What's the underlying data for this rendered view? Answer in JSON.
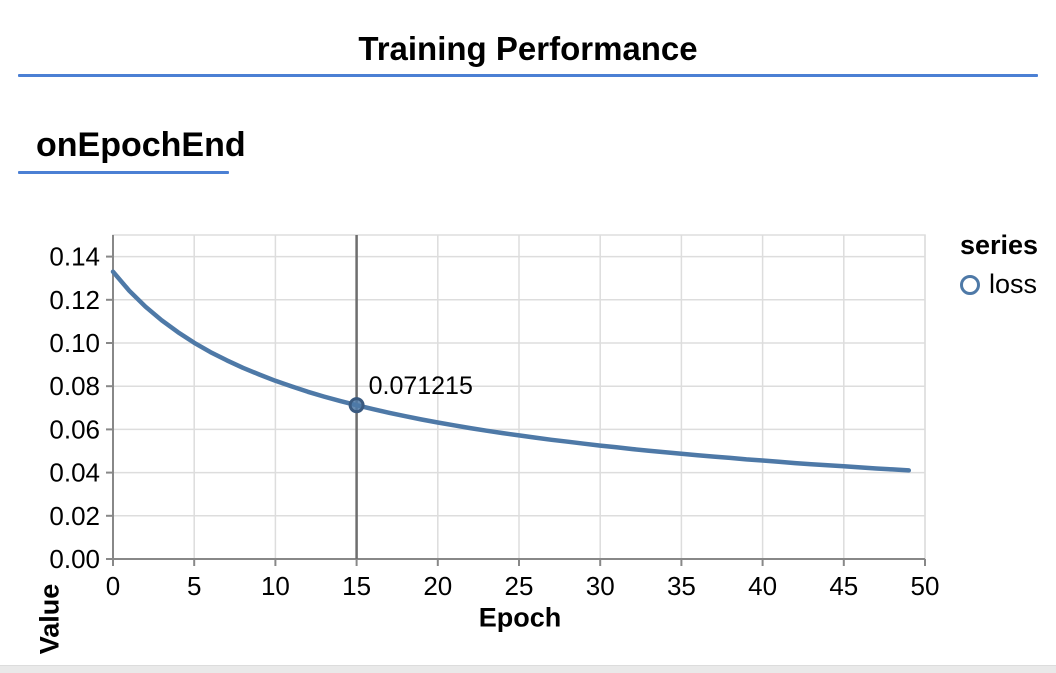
{
  "page": {
    "title": "Training Performance",
    "section_heading": "onEpochEnd"
  },
  "colors": {
    "accent_rule": "#4b80d4",
    "series_stroke": "#4e79a7",
    "marker_stroke": "#3a5a80",
    "grid": "#dddddd",
    "axis": "#888888",
    "crosshair": "#6e6e6e",
    "text": "#000000",
    "footer_strip": "#e9e9e9"
  },
  "legend": {
    "title": "series",
    "items": [
      {
        "label": "loss",
        "symbol": "open-circle-icon",
        "color": "#4e79a7"
      }
    ]
  },
  "chart_data": {
    "type": "line",
    "title": "Training Performance",
    "xlabel": "Epoch",
    "ylabel": "Value",
    "xlim": [
      0,
      50
    ],
    "ylim": [
      0,
      0.15
    ],
    "grid": true,
    "legend_position": "right",
    "x_ticks": [
      0,
      5,
      10,
      15,
      20,
      25,
      30,
      35,
      40,
      45,
      50
    ],
    "x_tick_labels": [
      "0",
      "5",
      "10",
      "15",
      "20",
      "25",
      "30",
      "35",
      "40",
      "45",
      "50"
    ],
    "y_ticks": [
      0,
      0.02,
      0.04,
      0.06,
      0.08,
      0.1,
      0.12,
      0.14
    ],
    "y_tick_labels": [
      "0.00",
      "0.02",
      "0.04",
      "0.06",
      "0.08",
      "0.10",
      "0.12",
      "0.14"
    ],
    "series": [
      {
        "name": "loss",
        "x": [
          0,
          1,
          2,
          3,
          4,
          5,
          6,
          7,
          8,
          9,
          10,
          11,
          12,
          13,
          14,
          15,
          16,
          17,
          18,
          19,
          20,
          21,
          22,
          23,
          24,
          25,
          26,
          27,
          28,
          29,
          30,
          31,
          32,
          33,
          34,
          35,
          36,
          37,
          38,
          39,
          40,
          41,
          42,
          43,
          44,
          45,
          46,
          47,
          48,
          49
        ],
        "y": [
          0.133,
          0.1242,
          0.1168,
          0.1105,
          0.105,
          0.1001,
          0.0958,
          0.092,
          0.0885,
          0.0854,
          0.0825,
          0.0799,
          0.0774,
          0.0752,
          0.0731,
          0.071215,
          0.0694,
          0.0677,
          0.0661,
          0.0646,
          0.0632,
          0.0619,
          0.0606,
          0.0594,
          0.0583,
          0.0572,
          0.0562,
          0.0552,
          0.0543,
          0.0534,
          0.0525,
          0.0517,
          0.0509,
          0.0501,
          0.0494,
          0.0487,
          0.048,
          0.0474,
          0.0468,
          0.0461,
          0.0456,
          0.045,
          0.0444,
          0.0439,
          0.0434,
          0.0429,
          0.0424,
          0.0419,
          0.0415,
          0.041
        ]
      }
    ],
    "highlight": {
      "series": "loss",
      "x": 15,
      "y": 0.071215,
      "label": "0.071215"
    }
  }
}
